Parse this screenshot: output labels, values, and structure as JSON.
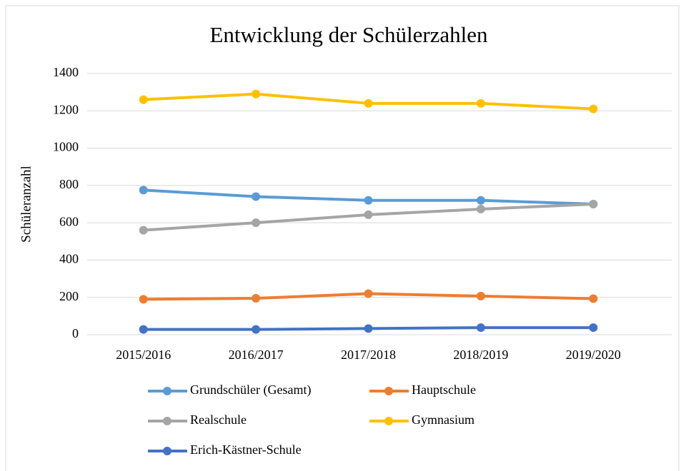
{
  "chart_data": {
    "type": "line",
    "title": "Entwicklung der Schülerzahlen",
    "y_label": "Schüleranzahl",
    "categories": [
      "2015/2016",
      "2016/2017",
      "2017/2018",
      "2018/2019",
      "2019/2020"
    ],
    "series": [
      {
        "name": "Grundschüler (Gesamt)",
        "color": "#5b9bd5",
        "values": [
          775,
          740,
          720,
          720,
          700
        ]
      },
      {
        "name": "Hauptschule",
        "color": "#ed7d31",
        "values": [
          190,
          195,
          220,
          207,
          193
        ]
      },
      {
        "name": "Realschule",
        "color": "#a5a5a5",
        "values": [
          560,
          600,
          643,
          673,
          700
        ]
      },
      {
        "name": "Gymnasium",
        "color": "#ffc000",
        "values": [
          1260,
          1290,
          1240,
          1240,
          1210
        ]
      },
      {
        "name": "Erich-Kästner-Schule",
        "color": "#4472c4",
        "values": [
          28,
          28,
          33,
          38,
          38
        ]
      }
    ],
    "ylim": [
      0,
      1400
    ],
    "yticks": [
      0,
      200,
      400,
      600,
      800,
      1000,
      1200,
      1400
    ],
    "grid": true,
    "legend": "bottom"
  }
}
